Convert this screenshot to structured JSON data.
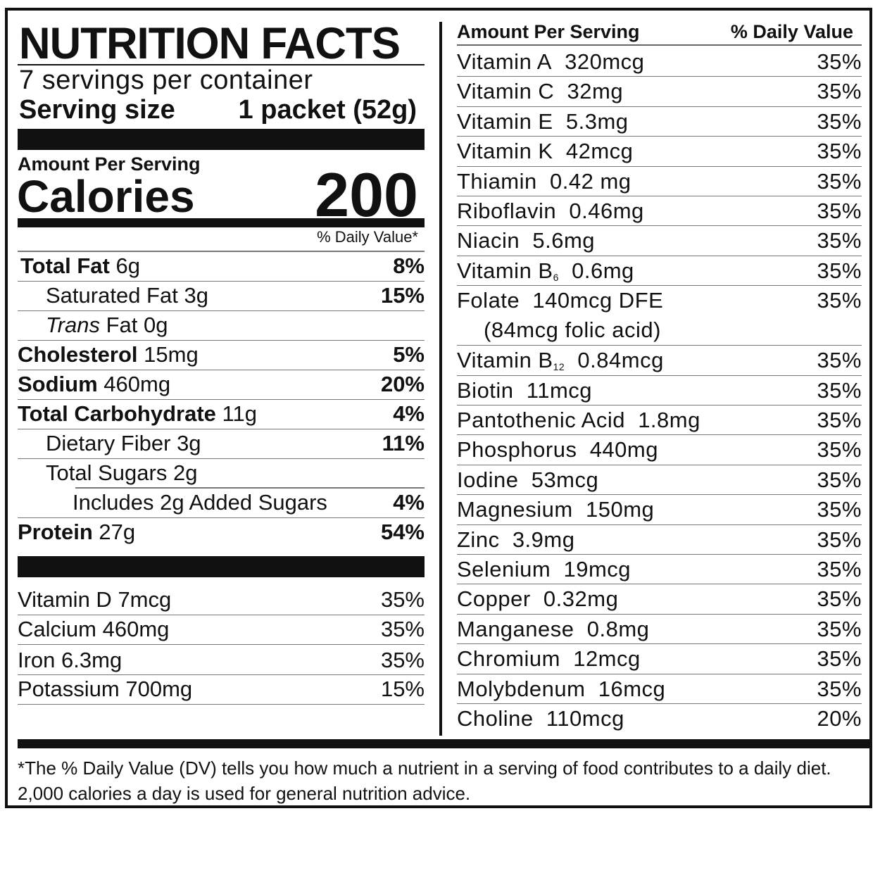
{
  "label": {
    "title": "NUTRITION FACTS",
    "servings": "7 servings per container",
    "serving_size_label": "Serving size",
    "serving_size_value": "1 packet (52g)",
    "amount_per_serving": "Amount Per Serving",
    "calories_label": "Calories",
    "calories_value": "200",
    "dv_header": "% Daily Value*"
  },
  "nutrients": [
    {
      "name": "Total Fat",
      "amount": "6g",
      "dv": "8%"
    },
    {
      "name": "Saturated Fat",
      "amount": "3g",
      "dv": "15%"
    },
    {
      "name_italic": "Trans",
      "name": "Fat",
      "amount": "0g",
      "dv": ""
    },
    {
      "name": "Cholesterol",
      "amount": "15mg",
      "dv": "5%"
    },
    {
      "name": "Sodium",
      "amount": "460mg",
      "dv": "20%"
    },
    {
      "name": "Total Carbohydrate",
      "amount": "11g",
      "dv": "4%"
    },
    {
      "name": "Dietary Fiber",
      "amount": "3g",
      "dv": "11%"
    },
    {
      "name": "Total Sugars",
      "amount": "2g",
      "dv": ""
    },
    {
      "name": "Includes 2g Added Sugars",
      "amount": "",
      "dv": "4%"
    },
    {
      "name": "Protein",
      "amount": "27g",
      "dv": "54%"
    }
  ],
  "minerals_left": [
    {
      "name": "Vitamin D",
      "amount": "7mcg",
      "dv": "35%"
    },
    {
      "name": "Calcium",
      "amount": "460mg",
      "dv": "35%"
    },
    {
      "name": "Iron",
      "amount": "6.3mg",
      "dv": "35%"
    },
    {
      "name": "Potassium",
      "amount": "700mg",
      "dv": "15%"
    }
  ],
  "right_header": {
    "left": "Amount Per Serving",
    "right": "% Daily Value"
  },
  "micros": [
    {
      "name": "Vitamin A",
      "amount": "320mcg",
      "dv": "35%"
    },
    {
      "name": "Vitamin C",
      "amount": "32mg",
      "dv": "35%"
    },
    {
      "name": "Vitamin E",
      "amount": "5.3mg",
      "dv": "35%"
    },
    {
      "name": "Vitamin K",
      "amount": "42mcg",
      "dv": "35%"
    },
    {
      "name": "Thiamin",
      "amount": "0.42 mg",
      "dv": "35%"
    },
    {
      "name": "Riboflavin",
      "amount": "0.46mg",
      "dv": "35%"
    },
    {
      "name": "Niacin",
      "amount": "5.6mg",
      "dv": "35%"
    },
    {
      "name": "Vitamin B",
      "sub": "6",
      "amount": "0.6mg",
      "dv": "35%"
    },
    {
      "name": "Folate",
      "amount": "140mcg DFE",
      "line2": "(84mcg folic acid)",
      "dv": "35%"
    },
    {
      "name": "Vitamin B",
      "sub": "12",
      "amount": "0.84mcg",
      "dv": "35%"
    },
    {
      "name": "Biotin",
      "amount": "11mcg",
      "dv": "35%"
    },
    {
      "name": "Pantothenic Acid",
      "amount": "1.8mg",
      "dv": "35%"
    },
    {
      "name": "Phosphorus",
      "amount": "440mg",
      "dv": "35%"
    },
    {
      "name": "Iodine",
      "amount": "53mcg",
      "dv": "35%"
    },
    {
      "name": "Magnesium",
      "amount": "150mg",
      "dv": "35%"
    },
    {
      "name": "Zinc",
      "amount": "3.9mg",
      "dv": "35%"
    },
    {
      "name": "Selenium",
      "amount": "19mcg",
      "dv": "35%"
    },
    {
      "name": "Copper",
      "amount": "0.32mg",
      "dv": "35%"
    },
    {
      "name": "Manganese",
      "amount": "0.8mg",
      "dv": "35%"
    },
    {
      "name": "Chromium",
      "amount": "12mcg",
      "dv": "35%"
    },
    {
      "name": "Molybdenum",
      "amount": "16mcg",
      "dv": "35%"
    },
    {
      "name": "Choline",
      "amount": "110mcg",
      "dv": "20%"
    }
  ],
  "footnote": "*The % Daily Value (DV) tells you how much a nutrient in a serving of food contributes to a daily diet. 2,000 calories a day is used for general nutrition advice."
}
